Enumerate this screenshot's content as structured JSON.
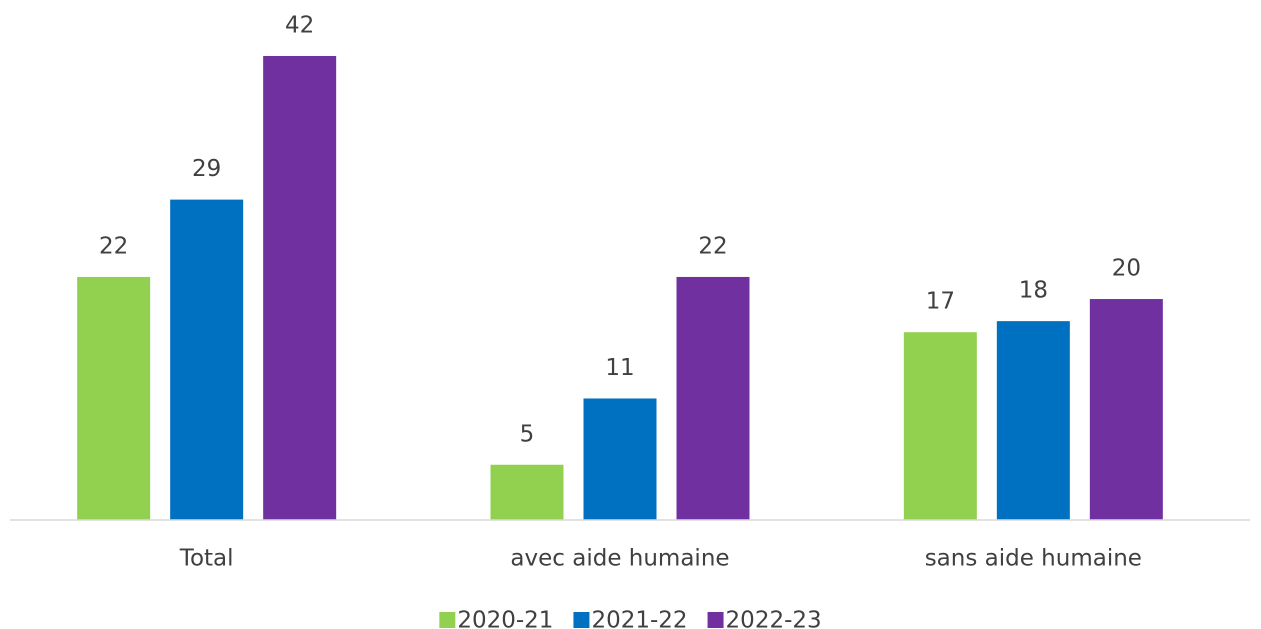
{
  "chart_data": {
    "type": "bar",
    "categories": [
      "Total",
      "avec aide humaine",
      "sans aide humaine"
    ],
    "series": [
      {
        "name": "2020-21",
        "color": "#92d050",
        "values": [
          22,
          5,
          17
        ]
      },
      {
        "name": "2021-22",
        "color": "#0070c0",
        "values": [
          29,
          11,
          18
        ]
      },
      {
        "name": "2022-23",
        "color": "#7030a0",
        "values": [
          42,
          22,
          20
        ]
      }
    ],
    "legend": "bottom"
  }
}
